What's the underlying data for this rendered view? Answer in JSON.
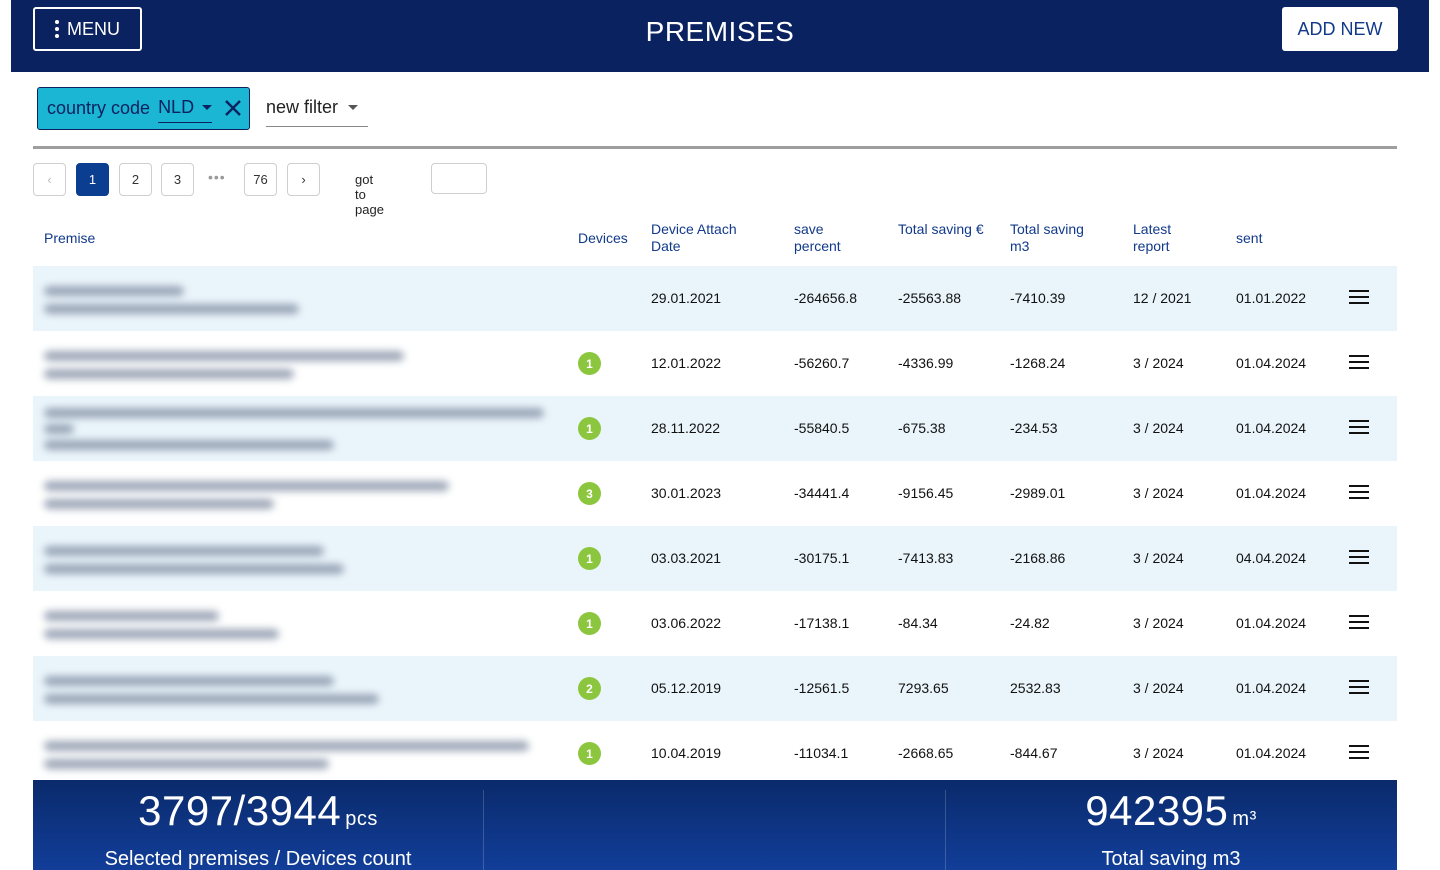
{
  "header": {
    "menu_label": "MENU",
    "title": "PREMISES",
    "add_new_label": "ADD NEW"
  },
  "filters": {
    "chip": {
      "field": "country code",
      "value": "NLD"
    },
    "new_filter_label": "new filter"
  },
  "pagination": {
    "prev": "‹",
    "pages": [
      "1",
      "2",
      "3"
    ],
    "active_page": "1",
    "ellipsis": "•••",
    "last_page": "76",
    "next": "›",
    "goto_label": "got to page",
    "goto_value": ""
  },
  "table": {
    "columns": {
      "premise": "Premise",
      "devices": "Devices",
      "attach_date": "Device Attach Date",
      "save_percent": "save percent",
      "total_saving_eur": "Total saving €",
      "total_saving_m3": "Total saving m3",
      "latest_report": "Latest report",
      "sent": "sent"
    },
    "rows": [
      {
        "devices": "",
        "attach_date": "29.01.2021",
        "save_percent": "-264656.8",
        "total_saving_eur": "-25563.88",
        "total_saving_m3": "-7410.39",
        "latest_report": "12 / 2021",
        "sent": "01.01.2022"
      },
      {
        "devices": "1",
        "attach_date": "12.01.2022",
        "save_percent": "-56260.7",
        "total_saving_eur": "-4336.99",
        "total_saving_m3": "-1268.24",
        "latest_report": "3 / 2024",
        "sent": "01.04.2024"
      },
      {
        "devices": "1",
        "attach_date": "28.11.2022",
        "save_percent": "-55840.5",
        "total_saving_eur": "-675.38",
        "total_saving_m3": "-234.53",
        "latest_report": "3 / 2024",
        "sent": "01.04.2024"
      },
      {
        "devices": "3",
        "attach_date": "30.01.2023",
        "save_percent": "-34441.4",
        "total_saving_eur": "-9156.45",
        "total_saving_m3": "-2989.01",
        "latest_report": "3 / 2024",
        "sent": "01.04.2024"
      },
      {
        "devices": "1",
        "attach_date": "03.03.2021",
        "save_percent": "-30175.1",
        "total_saving_eur": "-7413.83",
        "total_saving_m3": "-2168.86",
        "latest_report": "3 / 2024",
        "sent": "04.04.2024"
      },
      {
        "devices": "1",
        "attach_date": "03.06.2022",
        "save_percent": "-17138.1",
        "total_saving_eur": "-84.34",
        "total_saving_m3": "-24.82",
        "latest_report": "3 / 2024",
        "sent": "01.04.2024"
      },
      {
        "devices": "2",
        "attach_date": "05.12.2019",
        "save_percent": "-12561.5",
        "total_saving_eur": "7293.65",
        "total_saving_m3": "2532.83",
        "latest_report": "3 / 2024",
        "sent": "01.04.2024"
      },
      {
        "devices": "1",
        "attach_date": "10.04.2019",
        "save_percent": "-11034.1",
        "total_saving_eur": "-2668.65",
        "total_saving_m3": "-844.67",
        "latest_report": "3 / 2024",
        "sent": "01.04.2024"
      }
    ]
  },
  "footer": {
    "premises_count": "3797/3944",
    "premises_unit": "pcs",
    "premises_label": "Selected premises / Devices count",
    "total_saving": "942395",
    "total_saving_unit": "m³",
    "total_saving_label": "Total saving m3"
  },
  "colors": {
    "header_bg": "#0b2260",
    "accent": "#0b3d91",
    "chip_bg": "#1bb6d3",
    "badge": "#8cc63f",
    "row_alt": "#eaf5fb"
  }
}
